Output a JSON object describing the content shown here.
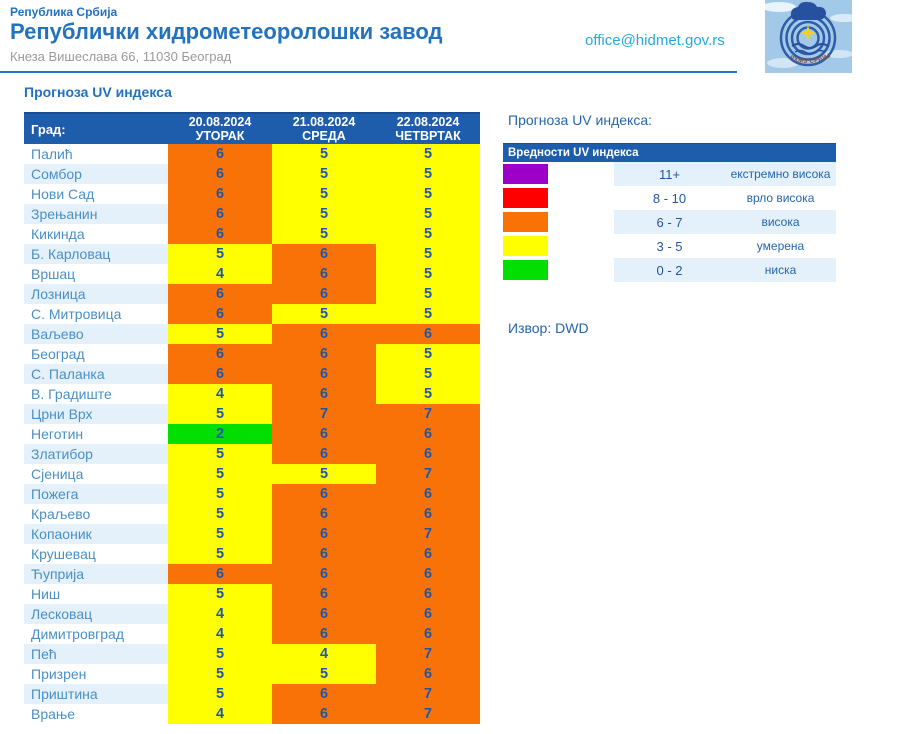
{
  "header": {
    "country": "Република Србија",
    "org": "Републички хидрометеоролошки завод",
    "address": "Кнеза Вишеслава 66, 11030 Београд",
    "email": "office@hidmet.gov.rs",
    "logo_text": "РХМЗ СРБИЈЕ"
  },
  "page_title": "Прогноза UV индекса",
  "table": {
    "city_header": "Град:",
    "columns": [
      {
        "date": "20.08.2024",
        "day": "УТОРАК"
      },
      {
        "date": "21.08.2024",
        "day": "СРЕДА"
      },
      {
        "date": "22.08.2024",
        "day": "ЧЕТВРТАК"
      }
    ],
    "rows": [
      {
        "city": "Палић",
        "values": [
          6,
          5,
          5
        ]
      },
      {
        "city": "Сомбор",
        "values": [
          6,
          5,
          5
        ]
      },
      {
        "city": "Нови Сад",
        "values": [
          6,
          5,
          5
        ]
      },
      {
        "city": "Зрењанин",
        "values": [
          6,
          5,
          5
        ]
      },
      {
        "city": "Кикинда",
        "values": [
          6,
          5,
          5
        ]
      },
      {
        "city": "Б. Карловац",
        "values": [
          5,
          6,
          5
        ]
      },
      {
        "city": "Вршац",
        "values": [
          4,
          6,
          5
        ]
      },
      {
        "city": "Лозница",
        "values": [
          6,
          6,
          5
        ]
      },
      {
        "city": "С. Митровица",
        "values": [
          6,
          5,
          5
        ]
      },
      {
        "city": "Ваљево",
        "values": [
          5,
          6,
          6
        ]
      },
      {
        "city": "Београд",
        "values": [
          6,
          6,
          5
        ]
      },
      {
        "city": "С. Паланка",
        "values": [
          6,
          6,
          5
        ]
      },
      {
        "city": "В. Градиште",
        "values": [
          4,
          6,
          5
        ]
      },
      {
        "city": "Црни Врх",
        "values": [
          5,
          7,
          7
        ]
      },
      {
        "city": "Неготин",
        "values": [
          2,
          6,
          6
        ]
      },
      {
        "city": "Златибор",
        "values": [
          5,
          6,
          6
        ]
      },
      {
        "city": "Сјеница",
        "values": [
          5,
          5,
          7
        ]
      },
      {
        "city": "Пожега",
        "values": [
          5,
          6,
          6
        ]
      },
      {
        "city": "Краљево",
        "values": [
          5,
          6,
          6
        ]
      },
      {
        "city": "Копаоник",
        "values": [
          5,
          6,
          7
        ]
      },
      {
        "city": "Крушевац",
        "values": [
          5,
          6,
          6
        ]
      },
      {
        "city": "Ћуприја",
        "values": [
          6,
          6,
          6
        ]
      },
      {
        "city": "Ниш",
        "values": [
          5,
          6,
          6
        ]
      },
      {
        "city": "Лесковац",
        "values": [
          4,
          6,
          6
        ]
      },
      {
        "city": "Димитровград",
        "values": [
          4,
          6,
          6
        ]
      },
      {
        "city": "Пећ",
        "values": [
          5,
          4,
          7
        ]
      },
      {
        "city": "Призрен",
        "values": [
          5,
          5,
          6
        ]
      },
      {
        "city": "Приштина",
        "values": [
          5,
          6,
          7
        ]
      },
      {
        "city": "Врање",
        "values": [
          4,
          6,
          7
        ]
      }
    ]
  },
  "legend": {
    "title": "Прогноза UV индекса:",
    "table_header": "Вредности UV индекса",
    "rows": [
      {
        "range": "11+",
        "label": "екстремно висока",
        "color": "#9C00C8",
        "min": 11
      },
      {
        "range": "8 - 10",
        "label": "врло висока",
        "color": "#FF0000",
        "min": 8
      },
      {
        "range": "6 - 7",
        "label": "висока",
        "color": "#F97208",
        "min": 6
      },
      {
        "range": "3 - 5",
        "label": "умерена",
        "color": "#FFFF00",
        "min": 3
      },
      {
        "range": "0 - 2",
        "label": "ниска",
        "color": "#00DF00",
        "min": 0
      }
    ]
  },
  "source": "Извор: DWD",
  "colors": {
    "brand_blue": "#2272BE",
    "header_blue": "#1E5CAC",
    "row_alt": "#E4F1FA",
    "city_text": "#4A8FC7",
    "value_text": "#2256A4",
    "email_blue": "#29A8E0",
    "muted_gray": "#9A9A9A"
  }
}
